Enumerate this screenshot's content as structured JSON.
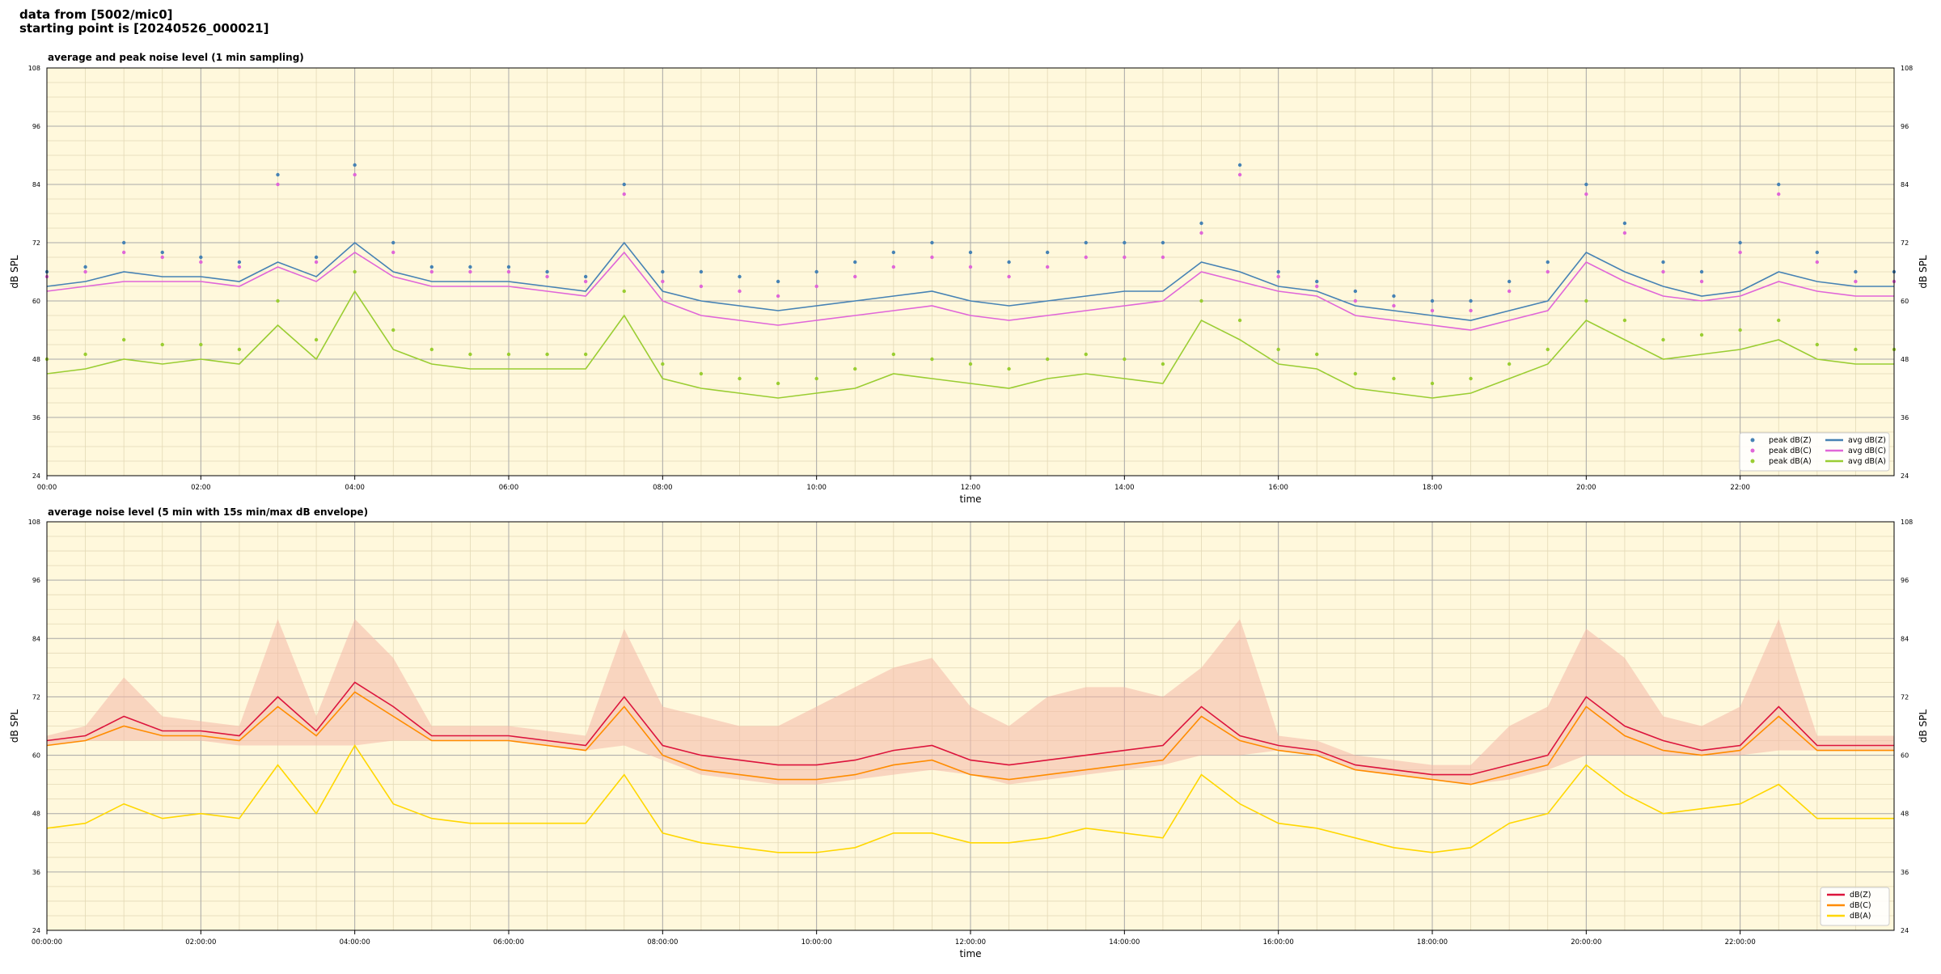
{
  "header": {
    "line1": "data from [5002/mic0]",
    "line2": "starting point is [20240526_000021]"
  },
  "colors": {
    "background": "#ffffff",
    "plot_bg": "#fff8dc",
    "grid_major": "#aaaaaa",
    "grid_minor": "#e3d9b6",
    "z": "#4682b4",
    "c": "#e066d8",
    "a": "#9acd32",
    "z5": "#dc143c",
    "c5": "#ff8c00",
    "a5": "#ffd700",
    "envelope": "#f4b8a8"
  },
  "chart_data": [
    {
      "type": "line",
      "title": "average and peak noise level (1 min sampling)",
      "xlabel": "time",
      "ylabel": "dB SPL",
      "xlim": [
        0,
        24
      ],
      "ylim": [
        24,
        108
      ],
      "yticks": [
        "24",
        "36",
        "48",
        "60",
        "72",
        "84",
        "96",
        "108"
      ],
      "xticks": [
        "00:00",
        "02:00",
        "04:00",
        "06:00",
        "08:00",
        "10:00",
        "12:00",
        "14:00",
        "16:00",
        "18:00",
        "20:00",
        "22:00"
      ],
      "grid": true,
      "legend_position": "lower-right",
      "legend": [
        "peak dB(Z)",
        "peak dB(C)",
        "peak dB(A)",
        "avg dB(Z)",
        "avg dB(C)",
        "avg dB(A)"
      ],
      "x": [
        0,
        0.5,
        1,
        1.5,
        2,
        2.5,
        3,
        3.5,
        4,
        4.5,
        5,
        5.5,
        6,
        6.5,
        7,
        7.5,
        8,
        8.5,
        9,
        9.5,
        10,
        10.5,
        11,
        11.5,
        12,
        12.5,
        13,
        13.5,
        14,
        14.5,
        15,
        15.5,
        16,
        16.5,
        17,
        17.5,
        18,
        18.5,
        19,
        19.5,
        20,
        20.5,
        21,
        21.5,
        22,
        22.5,
        23,
        23.5,
        24
      ],
      "series": [
        {
          "name": "avg dB(Z)",
          "values": [
            63,
            64,
            66,
            65,
            65,
            64,
            68,
            65,
            72,
            66,
            64,
            64,
            64,
            63,
            62,
            72,
            62,
            60,
            59,
            58,
            59,
            60,
            61,
            62,
            60,
            59,
            60,
            61,
            62,
            62,
            68,
            66,
            63,
            62,
            59,
            58,
            57,
            56,
            58,
            60,
            70,
            66,
            63,
            61,
            62,
            66,
            64,
            63,
            63
          ]
        },
        {
          "name": "avg dB(C)",
          "values": [
            62,
            63,
            64,
            64,
            64,
            63,
            67,
            64,
            70,
            65,
            63,
            63,
            63,
            62,
            61,
            70,
            60,
            57,
            56,
            55,
            56,
            57,
            58,
            59,
            57,
            56,
            57,
            58,
            59,
            60,
            66,
            64,
            62,
            61,
            57,
            56,
            55,
            54,
            56,
            58,
            68,
            64,
            61,
            60,
            61,
            64,
            62,
            61,
            61
          ]
        },
        {
          "name": "avg dB(A)",
          "values": [
            45,
            46,
            48,
            47,
            48,
            47,
            55,
            48,
            62,
            50,
            47,
            46,
            46,
            46,
            46,
            57,
            44,
            42,
            41,
            40,
            41,
            42,
            45,
            44,
            43,
            42,
            44,
            45,
            44,
            43,
            56,
            52,
            47,
            46,
            42,
            41,
            40,
            41,
            44,
            47,
            56,
            52,
            48,
            49,
            50,
            52,
            48,
            47,
            47
          ]
        },
        {
          "name": "peak dB(Z)",
          "values": [
            66,
            67,
            72,
            70,
            69,
            68,
            86,
            69,
            88,
            72,
            67,
            67,
            67,
            66,
            65,
            84,
            66,
            66,
            65,
            64,
            66,
            68,
            70,
            72,
            70,
            68,
            70,
            72,
            72,
            72,
            76,
            88,
            66,
            64,
            62,
            61,
            60,
            60,
            64,
            68,
            84,
            76,
            68,
            66,
            72,
            84,
            70,
            66,
            66
          ]
        },
        {
          "name": "peak dB(C)",
          "values": [
            65,
            66,
            70,
            69,
            68,
            67,
            84,
            68,
            86,
            70,
            66,
            66,
            66,
            65,
            64,
            82,
            64,
            63,
            62,
            61,
            63,
            65,
            67,
            69,
            67,
            65,
            67,
            69,
            69,
            69,
            74,
            86,
            65,
            63,
            60,
            59,
            58,
            58,
            62,
            66,
            82,
            74,
            66,
            64,
            70,
            82,
            68,
            64,
            64
          ]
        },
        {
          "name": "peak dB(A)",
          "values": [
            48,
            49,
            52,
            51,
            51,
            50,
            60,
            52,
            66,
            54,
            50,
            49,
            49,
            49,
            49,
            62,
            47,
            45,
            44,
            43,
            44,
            46,
            49,
            48,
            47,
            46,
            48,
            49,
            48,
            47,
            60,
            56,
            50,
            49,
            45,
            44,
            43,
            44,
            47,
            50,
            60,
            56,
            52,
            53,
            54,
            56,
            51,
            50,
            50
          ]
        }
      ]
    },
    {
      "type": "line",
      "title": "average noise level (5 min with 15s min/max dB envelope)",
      "xlabel": "time",
      "ylabel": "dB SPL",
      "xlim": [
        0,
        24
      ],
      "ylim": [
        24,
        108
      ],
      "yticks": [
        "24",
        "36",
        "48",
        "60",
        "72",
        "84",
        "96",
        "108"
      ],
      "xticks": [
        "00:00:00",
        "02:00:00",
        "04:00:00",
        "06:00:00",
        "08:00:00",
        "10:00:00",
        "12:00:00",
        "14:00:00",
        "16:00:00",
        "18:00:00",
        "20:00:00",
        "22:00:00"
      ],
      "grid": true,
      "legend_position": "lower-right",
      "legend": [
        "dB(Z)",
        "dB(C)",
        "dB(A)"
      ],
      "x": [
        0,
        0.5,
        1,
        1.5,
        2,
        2.5,
        3,
        3.5,
        4,
        4.5,
        5,
        5.5,
        6,
        6.5,
        7,
        7.5,
        8,
        8.5,
        9,
        9.5,
        10,
        10.5,
        11,
        11.5,
        12,
        12.5,
        13,
        13.5,
        14,
        14.5,
        15,
        15.5,
        16,
        16.5,
        17,
        17.5,
        18,
        18.5,
        19,
        19.5,
        20,
        20.5,
        21,
        21.5,
        22,
        22.5,
        23,
        23.5,
        24
      ],
      "series": [
        {
          "name": "dB(Z)",
          "values": [
            63,
            64,
            68,
            65,
            65,
            64,
            72,
            65,
            75,
            70,
            64,
            64,
            64,
            63,
            62,
            72,
            62,
            60,
            59,
            58,
            58,
            59,
            61,
            62,
            59,
            58,
            59,
            60,
            61,
            62,
            70,
            64,
            62,
            61,
            58,
            57,
            56,
            56,
            58,
            60,
            72,
            66,
            63,
            61,
            62,
            70,
            62,
            62,
            62
          ]
        },
        {
          "name": "dB(C)",
          "values": [
            62,
            63,
            66,
            64,
            64,
            63,
            70,
            64,
            73,
            68,
            63,
            63,
            63,
            62,
            61,
            70,
            60,
            57,
            56,
            55,
            55,
            56,
            58,
            59,
            56,
            55,
            56,
            57,
            58,
            59,
            68,
            63,
            61,
            60,
            57,
            56,
            55,
            54,
            56,
            58,
            70,
            64,
            61,
            60,
            61,
            68,
            61,
            61,
            61
          ]
        },
        {
          "name": "dB(A)",
          "values": [
            45,
            46,
            50,
            47,
            48,
            47,
            58,
            48,
            62,
            50,
            47,
            46,
            46,
            46,
            46,
            56,
            44,
            42,
            41,
            40,
            40,
            41,
            44,
            44,
            42,
            42,
            43,
            45,
            44,
            43,
            56,
            50,
            46,
            45,
            43,
            41,
            40,
            41,
            46,
            48,
            58,
            52,
            48,
            49,
            50,
            54,
            47,
            47,
            47
          ]
        }
      ],
      "envelope": {
        "min": [
          62,
          63,
          63,
          63,
          63,
          62,
          62,
          62,
          62,
          63,
          63,
          63,
          63,
          62,
          61,
          62,
          59,
          56,
          55,
          54,
          54,
          55,
          56,
          57,
          56,
          54,
          55,
          56,
          57,
          58,
          60,
          60,
          61,
          60,
          57,
          56,
          55,
          54,
          55,
          57,
          60,
          60,
          60,
          60,
          60,
          61,
          61,
          61,
          61
        ],
        "max": [
          64,
          66,
          76,
          68,
          67,
          66,
          88,
          68,
          88,
          80,
          66,
          66,
          66,
          65,
          64,
          86,
          70,
          68,
          66,
          66,
          70,
          74,
          78,
          80,
          70,
          66,
          72,
          74,
          74,
          72,
          78,
          88,
          64,
          63,
          60,
          59,
          58,
          58,
          66,
          70,
          86,
          80,
          68,
          66,
          70,
          88,
          64,
          64,
          64
        ]
      }
    }
  ]
}
